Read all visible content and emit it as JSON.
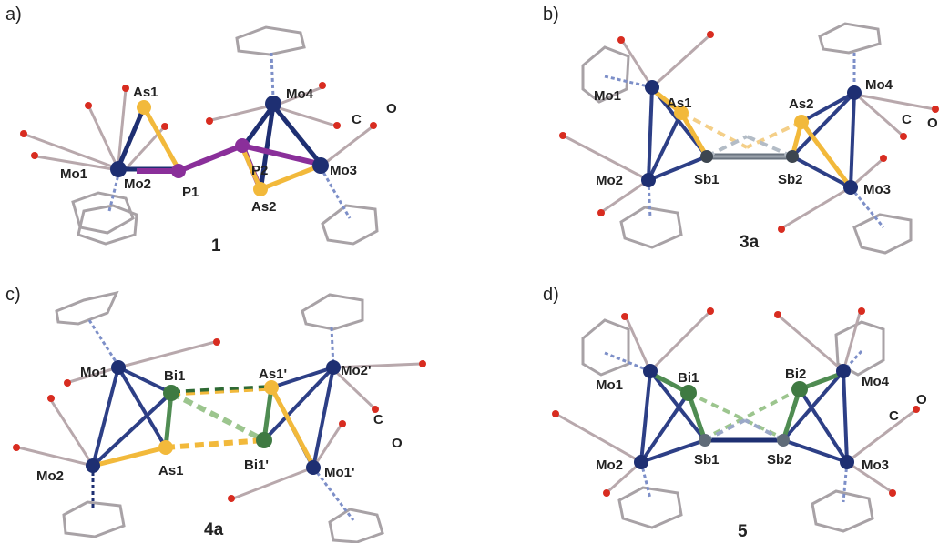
{
  "colors": {
    "mo": "#1e2f72",
    "mo_light": "#5a6fc0",
    "as": "#f2b93b",
    "p": "#8a2f9a",
    "sb": "#5f6b78",
    "bi": "#3f7a42",
    "oxygen": "#d82c20",
    "carbon": "#8e8b90",
    "bond": "#b8a8ac",
    "cp": "#a8a2a6"
  },
  "panels": [
    {
      "letter": "a)",
      "compound": "1",
      "atoms": {
        "as1": "As1",
        "mo1": "Mo1",
        "mo2": "Mo2",
        "p1": "P1",
        "p2": "P2",
        "as2": "As2",
        "mo3": "Mo3",
        "mo4": "Mo4",
        "c": "C",
        "o": "O"
      }
    },
    {
      "letter": "b)",
      "compound": "3a",
      "atoms": {
        "mo1": "Mo1",
        "as1": "As1",
        "mo2": "Mo2",
        "sb1": "Sb1",
        "sb2": "Sb2",
        "as2": "As2",
        "mo4": "Mo4",
        "mo3": "Mo3",
        "c": "C",
        "o": "O"
      }
    },
    {
      "letter": "c)",
      "compound": "4a",
      "atoms": {
        "mo1": "Mo1",
        "bi1": "Bi1",
        "as1p": "As1'",
        "mo2p": "Mo2'",
        "mo2": "Mo2",
        "as1": "As1",
        "bi1p": "Bi1'",
        "mo1p": "Mo1'",
        "c": "C",
        "o": "O"
      }
    },
    {
      "letter": "d)",
      "compound": "5",
      "atoms": {
        "mo1": "Mo1",
        "bi1": "Bi1",
        "bi2": "Bi2",
        "mo4": "Mo4",
        "mo2": "Mo2",
        "sb1": "Sb1",
        "sb2": "Sb2",
        "mo3": "Mo3",
        "c": "C",
        "o": "O"
      }
    }
  ]
}
